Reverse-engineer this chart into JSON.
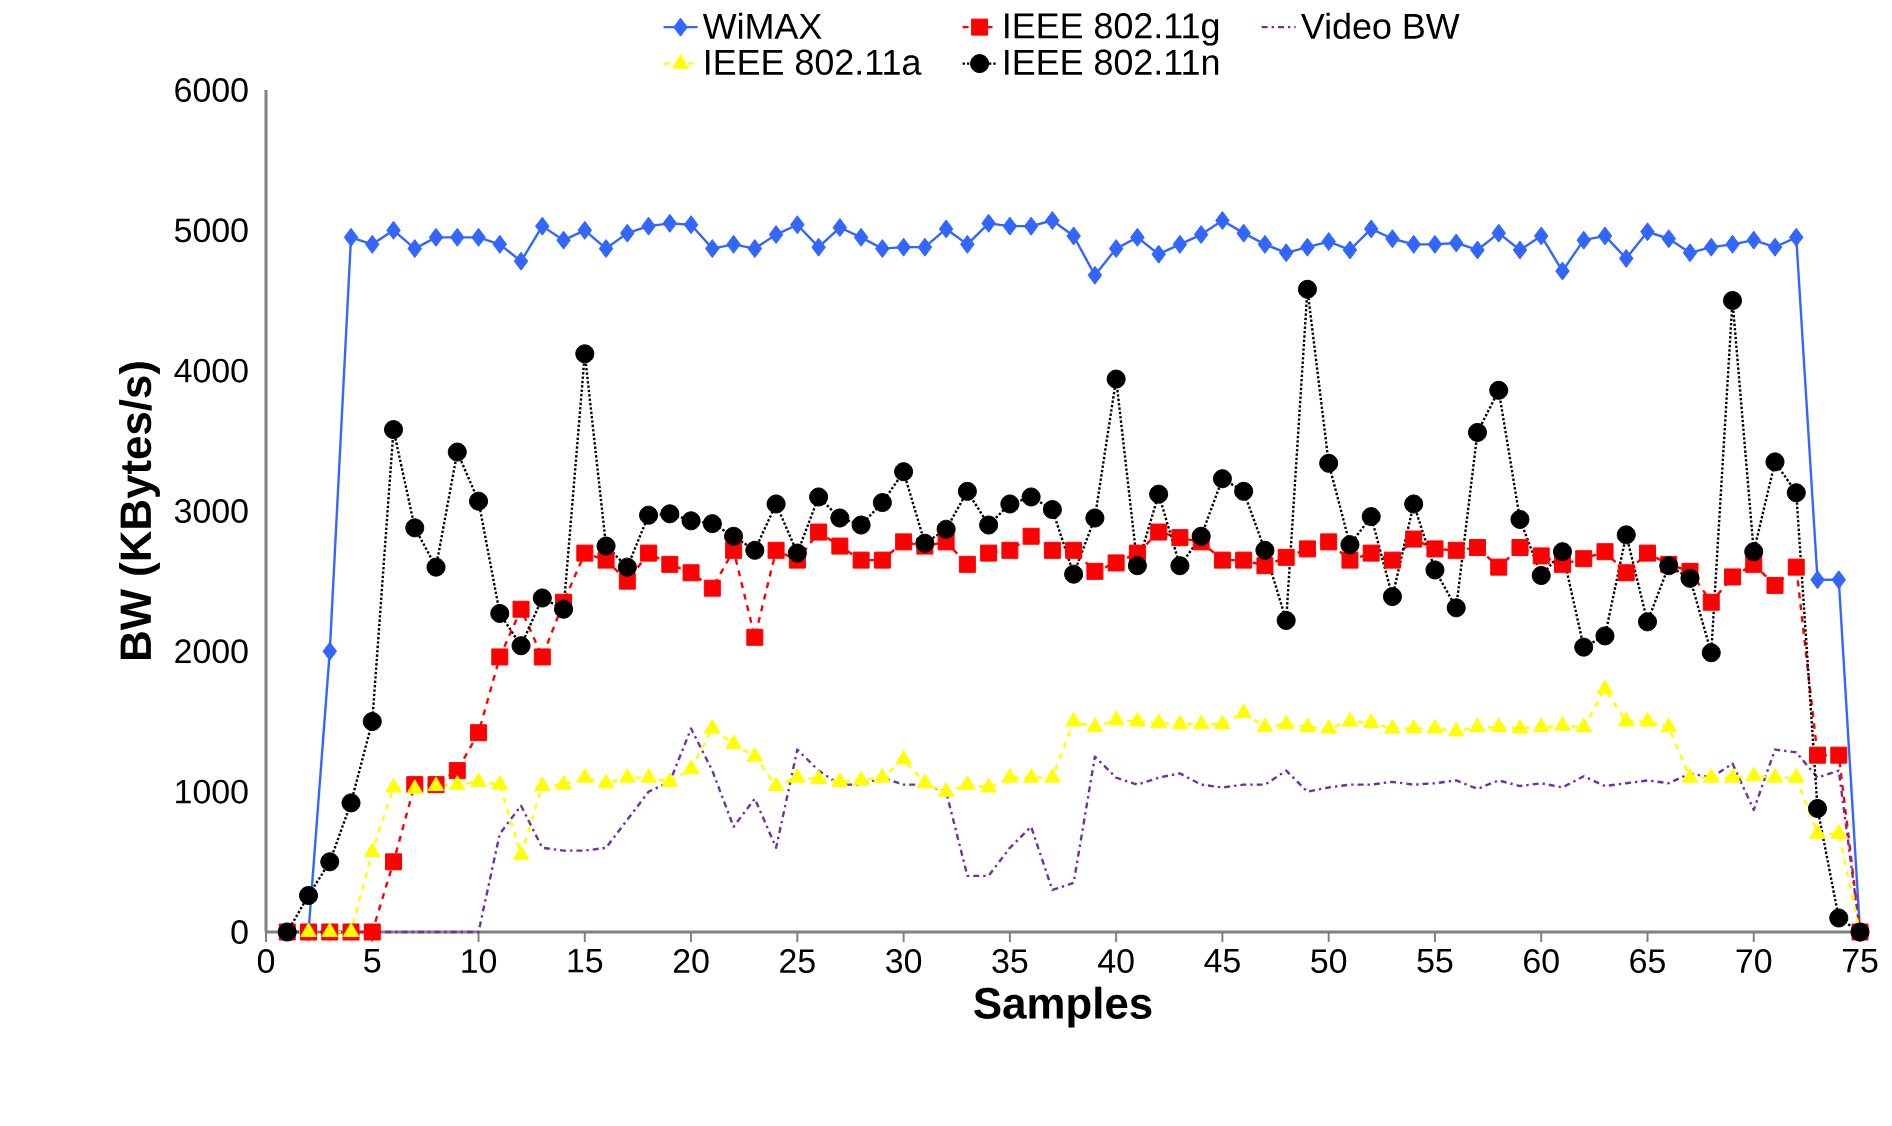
{
  "chart_data": {
    "type": "line",
    "xlabel": "Samples",
    "ylabel": "BW (KBytes/s)",
    "x": [
      1,
      2,
      3,
      4,
      5,
      6,
      7,
      8,
      9,
      10,
      11,
      12,
      13,
      14,
      15,
      16,
      17,
      18,
      19,
      20,
      21,
      22,
      23,
      24,
      25,
      26,
      27,
      28,
      29,
      30,
      31,
      32,
      33,
      34,
      35,
      36,
      37,
      38,
      39,
      40,
      41,
      42,
      43,
      44,
      45,
      46,
      47,
      48,
      49,
      50,
      51,
      52,
      53,
      54,
      55,
      56,
      57,
      58,
      59,
      60,
      61,
      62,
      63,
      64,
      65,
      66,
      67,
      68,
      69,
      70,
      71,
      72,
      73,
      74,
      75
    ],
    "xlim": [
      0,
      75
    ],
    "xticks": [
      0,
      5,
      10,
      15,
      20,
      25,
      30,
      35,
      40,
      45,
      50,
      55,
      60,
      65,
      70,
      75
    ],
    "ylim": [
      0,
      6000
    ],
    "yticks": [
      0,
      1000,
      2000,
      3000,
      4000,
      5000,
      6000
    ],
    "legend": "top",
    "grid": false,
    "series": [
      {
        "name": "WiMAX",
        "color": "#3366ff",
        "marker": "diamond",
        "line_style": "solid",
        "values": [
          0,
          0,
          2000,
          4950,
          4900,
          5000,
          4870,
          4950,
          4950,
          4950,
          4900,
          4780,
          5030,
          4930,
          5000,
          4870,
          4980,
          5030,
          5050,
          5040,
          4870,
          4900,
          4870,
          4970,
          5040,
          4880,
          5020,
          4950,
          4870,
          4880,
          4880,
          5010,
          4900,
          5050,
          5030,
          5030,
          5070,
          4960,
          4680,
          4870,
          4950,
          4830,
          4900,
          4970,
          5070,
          4980,
          4900,
          4840,
          4880,
          4920,
          4860,
          5010,
          4940,
          4900,
          4900,
          4910,
          4860,
          4980,
          4860,
          4960,
          4710,
          4930,
          4960,
          4800,
          4990,
          4940,
          4840,
          4880,
          4900,
          4930,
          4880,
          4950,
          2510,
          2510,
          0
        ]
      },
      {
        "name": "IEEE 802.11g",
        "color": "#ff0000",
        "marker": "square",
        "line_style": "dashed",
        "values": [
          0,
          0,
          0,
          0,
          0,
          500,
          1050,
          1050,
          1150,
          1420,
          1960,
          2300,
          1960,
          2350,
          2700,
          2650,
          2500,
          2700,
          2620,
          2560,
          2450,
          2720,
          2100,
          2720,
          2650,
          2850,
          2750,
          2650,
          2650,
          2780,
          2750,
          2780,
          2620,
          2700,
          2720,
          2820,
          2720,
          2720,
          2570,
          2630,
          2700,
          2850,
          2810,
          2780,
          2650,
          2650,
          2610,
          2670,
          2730,
          2780,
          2650,
          2700,
          2650,
          2800,
          2730,
          2720,
          2740,
          2600,
          2740,
          2680,
          2620,
          2660,
          2710,
          2560,
          2700,
          2620,
          2570,
          2350,
          2530,
          2620,
          2470,
          2600,
          1260,
          1260,
          0
        ]
      },
      {
        "name": "Video BW",
        "color": "#7030a0",
        "marker": "none",
        "line_style": "dashdot",
        "values": [
          0,
          0,
          0,
          0,
          0,
          0,
          0,
          0,
          0,
          0,
          700,
          900,
          600,
          580,
          580,
          600,
          800,
          1000,
          1070,
          1450,
          1150,
          750,
          950,
          600,
          1300,
          1150,
          1050,
          1050,
          1100,
          1050,
          1050,
          1000,
          400,
          400,
          600,
          750,
          300,
          350,
          1250,
          1100,
          1050,
          1100,
          1130,
          1050,
          1030,
          1050,
          1050,
          1150,
          1000,
          1030,
          1050,
          1050,
          1070,
          1050,
          1060,
          1080,
          1020,
          1080,
          1040,
          1060,
          1030,
          1110,
          1040,
          1060,
          1080,
          1060,
          1130,
          1100,
          1200,
          870,
          1300,
          1280,
          1100,
          1150,
          0
        ]
      },
      {
        "name": "IEEE 802.11a",
        "color": "#ffff00",
        "marker": "triangle",
        "line_style": "dashed",
        "values": [
          0,
          0,
          0,
          0,
          570,
          1030,
          1020,
          1040,
          1050,
          1070,
          1050,
          550,
          1040,
          1050,
          1100,
          1060,
          1100,
          1100,
          1070,
          1160,
          1450,
          1340,
          1250,
          1040,
          1100,
          1090,
          1070,
          1080,
          1100,
          1230,
          1060,
          1000,
          1050,
          1030,
          1100,
          1100,
          1100,
          1500,
          1460,
          1510,
          1500,
          1490,
          1480,
          1480,
          1480,
          1560,
          1460,
          1480,
          1460,
          1450,
          1500,
          1490,
          1450,
          1450,
          1450,
          1430,
          1460,
          1460,
          1450,
          1460,
          1470,
          1460,
          1730,
          1500,
          1500,
          1460,
          1100,
          1100,
          1100,
          1110,
          1100,
          1100,
          700,
          700,
          0
        ]
      },
      {
        "name": "IEEE 802.11n",
        "color": "#000000",
        "marker": "circle",
        "line_style": "dotted",
        "values": [
          0,
          260,
          500,
          920,
          1500,
          3580,
          2880,
          2600,
          3420,
          3070,
          2270,
          2040,
          2380,
          2300,
          4120,
          2750,
          2600,
          2970,
          2980,
          2930,
          2910,
          2820,
          2720,
          3050,
          2700,
          3100,
          2950,
          2900,
          3060,
          3280,
          2770,
          2870,
          3140,
          2900,
          3050,
          3100,
          3010,
          2550,
          2950,
          3940,
          2610,
          3120,
          2610,
          2820,
          3230,
          3140,
          2720,
          2220,
          4580,
          3340,
          2760,
          2960,
          2390,
          3050,
          2580,
          2310,
          3560,
          3860,
          2940,
          2540,
          2710,
          2030,
          2110,
          2830,
          2210,
          2610,
          2520,
          1990,
          4500,
          2710,
          3350,
          3130,
          880,
          100,
          0
        ]
      }
    ]
  }
}
